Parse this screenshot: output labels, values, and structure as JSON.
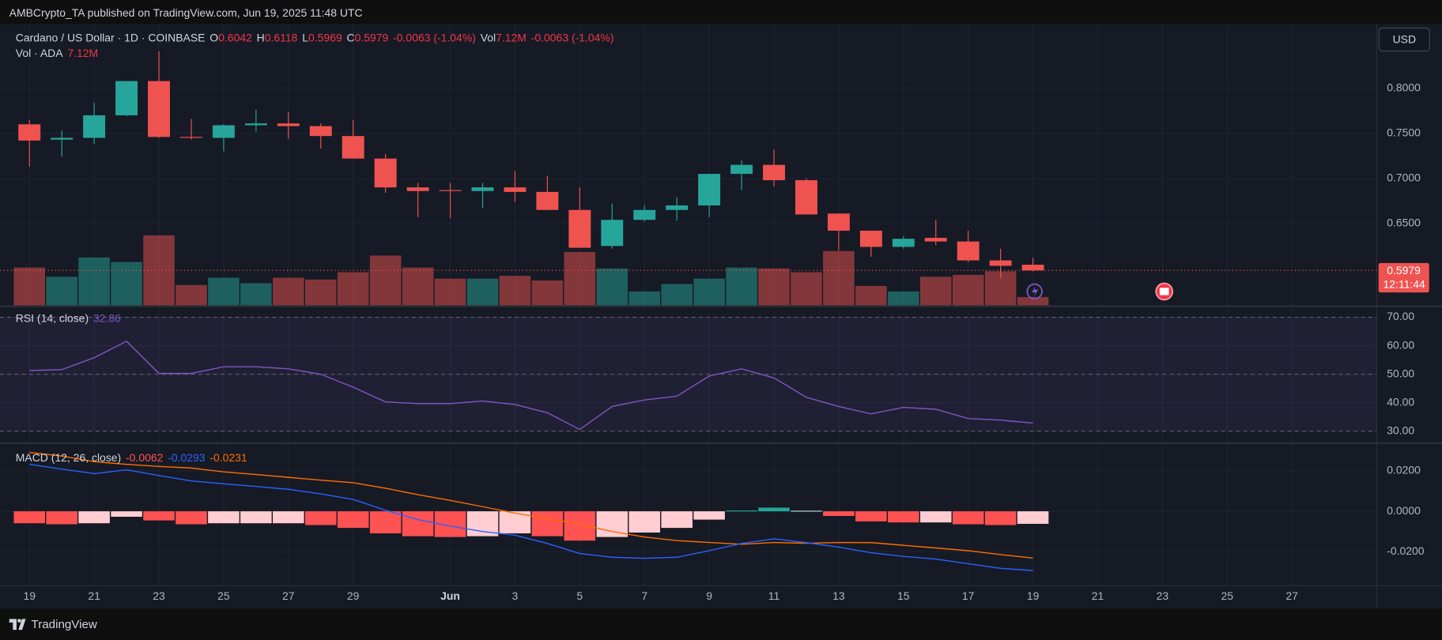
{
  "header": "AMBCrypto_TA published on TradingView.com, Jun 19, 2025 11:48 UTC",
  "footer": "TradingView",
  "currency": "USD",
  "countdown": "12:11:44",
  "chart_data": [
    {
      "type": "candlestick",
      "title": "Cardano / US Dollar · 1D · COINBASE",
      "ohlc_labels": [
        "O",
        "H",
        "L",
        "C"
      ],
      "change": "-0.0063 (-1.04%)",
      "volume_title": "Vol · ADA",
      "volume_short": "Vol",
      "volume_label": "7.12M",
      "categories": [
        "19",
        null,
        "21",
        null,
        "23",
        null,
        "25",
        null,
        "27",
        null,
        "29",
        null,
        null,
        "Jun",
        null,
        "3",
        null,
        "5",
        null,
        "7",
        null,
        "9",
        null,
        "11",
        null,
        "13",
        null,
        "15",
        null,
        "17",
        null,
        "19",
        null,
        "21",
        null,
        "23",
        null,
        "25",
        null,
        "27"
      ],
      "open": [
        0.76,
        0.743,
        0.745,
        0.77,
        0.808,
        0.746,
        0.745,
        0.759,
        0.761,
        0.758,
        0.747,
        0.722,
        0.69,
        0.687,
        0.686,
        0.69,
        0.685,
        0.665,
        0.625,
        0.654,
        0.665,
        0.67,
        0.705,
        0.715,
        0.698,
        0.661,
        0.642,
        0.624,
        0.634,
        0.63,
        0.609,
        0.6042,
        null,
        null,
        null,
        null,
        null,
        null,
        null,
        null
      ],
      "high": [
        0.765,
        0.753,
        0.784,
        0.808,
        0.841,
        0.766,
        0.76,
        0.776,
        0.774,
        0.761,
        0.765,
        0.727,
        0.695,
        0.695,
        0.695,
        0.708,
        0.703,
        0.69,
        0.672,
        0.67,
        0.679,
        0.705,
        0.72,
        0.732,
        0.7,
        0.661,
        0.642,
        0.636,
        0.654,
        0.642,
        0.622,
        0.6118,
        null,
        null,
        null,
        null,
        null,
        null,
        null,
        null
      ],
      "low": [
        0.713,
        0.724,
        0.738,
        0.769,
        0.745,
        0.743,
        0.73,
        0.752,
        0.744,
        0.733,
        0.722,
        0.684,
        0.657,
        0.656,
        0.667,
        0.674,
        0.665,
        0.623,
        0.622,
        0.652,
        0.653,
        0.657,
        0.687,
        0.691,
        0.66,
        0.62,
        0.613,
        0.622,
        0.626,
        0.607,
        0.589,
        0.5969,
        null,
        null,
        null,
        null,
        null,
        null,
        null,
        null
      ],
      "close": [
        0.742,
        0.745,
        0.77,
        0.808,
        0.746,
        0.745,
        0.759,
        0.761,
        0.758,
        0.747,
        0.722,
        0.69,
        0.686,
        0.686,
        0.69,
        0.685,
        0.665,
        0.623,
        0.654,
        0.665,
        0.67,
        0.705,
        0.715,
        0.698,
        0.66,
        0.642,
        0.624,
        0.633,
        0.63,
        0.609,
        0.603,
        0.5979,
        null,
        null,
        null,
        null,
        null,
        null,
        null,
        null
      ],
      "volume": [
        32400000,
        24500000,
        41100000,
        37100000,
        60000000,
        17400000,
        23700000,
        19000000,
        23700000,
        22100000,
        28400000,
        42700000,
        32400000,
        22900000,
        22900000,
        25300000,
        21300000,
        45800000,
        31600000,
        11900000,
        18200000,
        22900000,
        32400000,
        31600000,
        28400000,
        46600000,
        16600000,
        11900000,
        24500000,
        26100000,
        29200000,
        7120000,
        null,
        null,
        null,
        null,
        null,
        null,
        null,
        null
      ],
      "up_color": "#26a69a",
      "down_color": "#ef5350",
      "volume_up_color": "rgba(38,166,154,0.5)",
      "volume_down_color": "rgba(239,83,80,0.5)",
      "ylim": [
        0.5592,
        0.8704
      ],
      "yticks": [
        {
          "value": 0.65,
          "label": "0.6500"
        },
        {
          "value": 0.7,
          "label": "0.7000"
        },
        {
          "value": 0.75,
          "label": "0.7500"
        },
        {
          "value": 0.8,
          "label": "0.8000"
        }
      ],
      "grid": true
    },
    {
      "type": "line",
      "title": "RSI (14, close)",
      "color": "#7e57c2",
      "band_color": "rgba(126,87,194,0.1)",
      "values": [
        51.3,
        51.6,
        55.8,
        61.6,
        50.3,
        50.3,
        52.6,
        52.6,
        51.9,
        50.0,
        45.5,
        40.3,
        39.7,
        39.7,
        40.6,
        39.4,
        36.5,
        30.6,
        38.7,
        41.0,
        42.3,
        49.4,
        51.9,
        48.7,
        41.9,
        38.7,
        36.1,
        38.4,
        37.7,
        34.5,
        33.9,
        32.86,
        null,
        null,
        null,
        null,
        null,
        null,
        null,
        null
      ],
      "bands": [
        30,
        50,
        70
      ],
      "ylim": [
        26.13,
        73.23
      ],
      "yticks": [
        {
          "value": 30,
          "label": "30.00"
        },
        {
          "value": 40,
          "label": "40.00"
        },
        {
          "value": 50,
          "label": "50.00"
        },
        {
          "value": 60,
          "label": "60.00"
        },
        {
          "value": 70,
          "label": "70.00"
        }
      ],
      "grid": true
    },
    {
      "type": "macd",
      "title": "MACD (12, 26, close)",
      "histogram": {
        "colors": [
          "#26a69a",
          "#b2dfdb",
          "#ff5252",
          "#ffcdd2"
        ],
        "values": [
          -0.0059,
          -0.0064,
          -0.0059,
          -0.0027,
          -0.0045,
          -0.0064,
          -0.0059,
          -0.0059,
          -0.0059,
          -0.0068,
          -0.0082,
          -0.0109,
          -0.0123,
          -0.0127,
          -0.0123,
          -0.0109,
          -0.0123,
          -0.0145,
          -0.0127,
          -0.0105,
          -0.0082,
          -0.0041,
          0.0004,
          0.0018,
          0.0003,
          -0.0023,
          -0.005,
          -0.0055,
          -0.0055,
          -0.0064,
          -0.0068,
          -0.0062,
          null,
          null,
          null,
          null,
          null,
          null,
          null,
          null
        ]
      },
      "macd": {
        "color": "#2962ff",
        "values": [
          0.0232,
          0.0209,
          0.0186,
          0.0205,
          0.0177,
          0.015,
          0.0136,
          0.0123,
          0.0109,
          0.0086,
          0.0059,
          0.0005,
          -0.0041,
          -0.0073,
          -0.01,
          -0.0118,
          -0.0159,
          -0.0209,
          -0.0227,
          -0.0232,
          -0.0227,
          -0.0195,
          -0.0159,
          -0.0136,
          -0.0155,
          -0.0177,
          -0.0205,
          -0.0223,
          -0.0236,
          -0.0259,
          -0.0282,
          -0.0293,
          null,
          null,
          null,
          null,
          null,
          null,
          null,
          null
        ]
      },
      "signal": {
        "color": "#ff6d00",
        "values": [
          0.0291,
          0.0273,
          0.0245,
          0.0232,
          0.0222,
          0.0214,
          0.0195,
          0.0182,
          0.0168,
          0.0154,
          0.0141,
          0.0114,
          0.0082,
          0.0054,
          0.0023,
          -0.0009,
          -0.0036,
          -0.0064,
          -0.01,
          -0.0127,
          -0.0145,
          -0.0154,
          -0.0163,
          -0.0154,
          -0.0158,
          -0.0154,
          -0.0155,
          -0.0168,
          -0.0181,
          -0.0195,
          -0.0214,
          -0.0231,
          null,
          null,
          null,
          null,
          null,
          null,
          null,
          null
        ]
      },
      "ylim": [
        -0.0368,
        0.0332
      ],
      "yticks": [
        {
          "value": -0.02,
          "label": "-0.0200"
        },
        {
          "value": 0,
          "label": "0.0000"
        },
        {
          "value": 0.02,
          "label": "0.0200"
        }
      ],
      "grid": true
    }
  ]
}
